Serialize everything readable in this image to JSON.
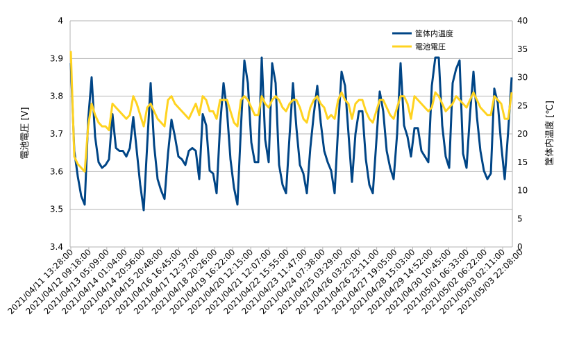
{
  "chart_data": {
    "type": "line",
    "title": "",
    "xlabel": "",
    "ylabel_left": "電池電圧 [V]",
    "ylabel_right": "筐体内温度 [℃]",
    "ylim_left": [
      3.4,
      4.0
    ],
    "ylim_right": [
      0,
      40
    ],
    "yticks_left": [
      "3.4",
      "3.5",
      "3.6",
      "3.7",
      "3.8",
      "3.9",
      "4"
    ],
    "yticks_right": [
      "0",
      "5",
      "10",
      "15",
      "20",
      "25",
      "30",
      "35",
      "40"
    ],
    "grid": "horizontal",
    "legend_position": "top-right",
    "x_tick_labels": [
      "2021/04/11 13:28:00",
      "2021/04/12 09:18:00",
      "2021/04/13 05:09:00",
      "2021/04/14 01:04:00",
      "2021/04/14 20:56:00",
      "2021/04/15 20:48:00",
      "2021/04/16 16:45:00",
      "2021/04/17 12:37:00",
      "2021/04/18 20:26:00",
      "2021/04/19 16:22:00",
      "2021/04/20 12:15:00",
      "2021/04/21 12:07:00",
      "2021/04/22 15:55:00",
      "2021/04/23 11:47:00",
      "2021/04/24 07:38:00",
      "2021/04/25 03:29:00",
      "2021/04/26 03:20:00",
      "2021/04/26 23:11:00",
      "2021/04/27 19:05:00",
      "2021/04/28 15:03:00",
      "2021/04/29 14:52:00",
      "2021/04/30 10:45:00",
      "2021/05/01 06:33:00",
      "2021/05/02 06:22:00",
      "2021/05/03 02:11:00",
      "2021/05/03 22:08:00"
    ],
    "series": [
      {
        "name": "筐体内温度",
        "axis": "right",
        "color": "#004586",
        "values": [
          32.5,
          17.0,
          12.5,
          9.0,
          7.5,
          22.5,
          30.0,
          19.5,
          15.0,
          14.0,
          14.5,
          15.5,
          23.5,
          17.5,
          17.0,
          17.0,
          16.0,
          17.5,
          23.0,
          17.0,
          11.0,
          6.5,
          18.0,
          29.0,
          18.0,
          12.0,
          10.0,
          8.5,
          16.5,
          22.5,
          19.5,
          16.0,
          15.5,
          14.5,
          17.0,
          17.5,
          17.0,
          12.0,
          23.5,
          21.5,
          13.5,
          13.0,
          9.5,
          21.5,
          29.0,
          24.0,
          15.5,
          10.5,
          7.5,
          21.0,
          33.0,
          29.0,
          18.5,
          15.0,
          15.0,
          33.5,
          19.0,
          15.0,
          32.5,
          29.0,
          14.5,
          11.0,
          9.5,
          19.5,
          29.0,
          21.0,
          14.5,
          13.0,
          9.5,
          17.5,
          23.5,
          28.5,
          22.0,
          17.0,
          15.0,
          13.5,
          9.5,
          21.0,
          31.0,
          28.5,
          20.0,
          11.5,
          20.0,
          24.0,
          24.0,
          15.5,
          11.0,
          9.5,
          18.5,
          27.5,
          24.0,
          17.0,
          14.0,
          12.0,
          20.0,
          32.5,
          21.5,
          19.5,
          16.0,
          21.0,
          21.0,
          17.0,
          16.0,
          15.0,
          28.5,
          33.5,
          33.5,
          21.5,
          16.0,
          14.0,
          29.0,
          31.5,
          33.0,
          16.5,
          14.0,
          23.5,
          31.0,
          23.0,
          17.0,
          13.5,
          12.0,
          13.0,
          28.0,
          25.5,
          18.0,
          12.0,
          20.5,
          30.0
        ]
      },
      {
        "name": "電池電圧",
        "axis": "left",
        "color": "#ffd320",
        "values": [
          3.92,
          3.64,
          3.62,
          3.61,
          3.6,
          3.72,
          3.78,
          3.75,
          3.73,
          3.72,
          3.72,
          3.71,
          3.78,
          3.77,
          3.76,
          3.75,
          3.74,
          3.75,
          3.8,
          3.78,
          3.75,
          3.72,
          3.77,
          3.78,
          3.76,
          3.74,
          3.73,
          3.72,
          3.79,
          3.8,
          3.78,
          3.77,
          3.76,
          3.75,
          3.74,
          3.76,
          3.78,
          3.75,
          3.8,
          3.79,
          3.76,
          3.76,
          3.74,
          3.79,
          3.79,
          3.79,
          3.76,
          3.73,
          3.72,
          3.79,
          3.8,
          3.79,
          3.77,
          3.75,
          3.75,
          3.8,
          3.78,
          3.77,
          3.79,
          3.8,
          3.79,
          3.77,
          3.76,
          3.78,
          3.79,
          3.79,
          3.77,
          3.74,
          3.73,
          3.77,
          3.79,
          3.8,
          3.78,
          3.77,
          3.74,
          3.75,
          3.74,
          3.79,
          3.81,
          3.79,
          3.78,
          3.74,
          3.78,
          3.79,
          3.79,
          3.76,
          3.74,
          3.73,
          3.76,
          3.79,
          3.79,
          3.77,
          3.75,
          3.74,
          3.77,
          3.8,
          3.8,
          3.78,
          3.74,
          3.8,
          3.79,
          3.78,
          3.77,
          3.76,
          3.77,
          3.81,
          3.8,
          3.78,
          3.76,
          3.77,
          3.78,
          3.8,
          3.79,
          3.78,
          3.77,
          3.79,
          3.81,
          3.79,
          3.77,
          3.76,
          3.75,
          3.75,
          3.8,
          3.79,
          3.78,
          3.74,
          3.74,
          3.81
        ]
      }
    ]
  }
}
